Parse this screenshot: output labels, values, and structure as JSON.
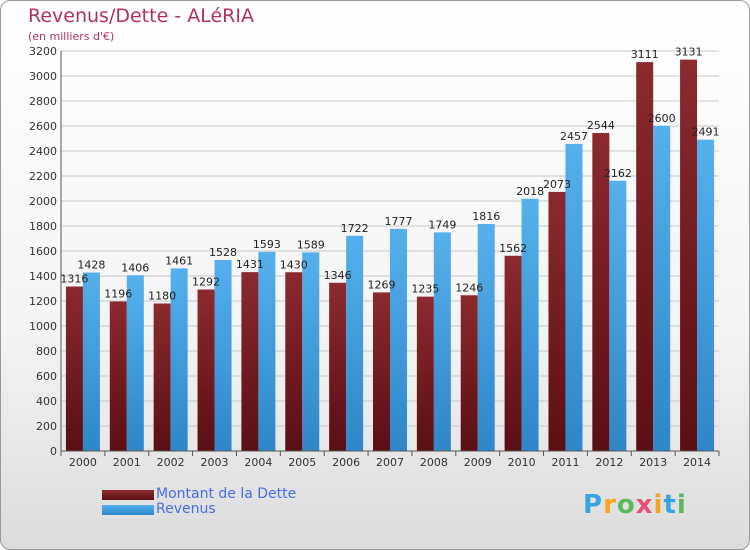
{
  "chart_data": {
    "type": "bar",
    "title": "Revenus/Dette - ALéRIA",
    "subtitle": "(en milliers d'€)",
    "categories": [
      "2000",
      "2001",
      "2002",
      "2003",
      "2004",
      "2005",
      "2006",
      "2007",
      "2008",
      "2009",
      "2010",
      "2011",
      "2012",
      "2013",
      "2014"
    ],
    "series": [
      {
        "name": "Montant de la Dette",
        "color": "#7a1e24",
        "values": [
          1316,
          1196,
          1180,
          1292,
          1431,
          1430,
          1346,
          1269,
          1235,
          1246,
          1562,
          2073,
          2544,
          3111,
          3131
        ],
        "labels": [
          "1316",
          "1196",
          "1180",
          "1292",
          "1431",
          "1430",
          "1346",
          "1269",
          "1235",
          "1246",
          "1562",
          "2073",
          "2544",
          "3111",
          "3131"
        ]
      },
      {
        "name": "Revenus",
        "color": "#3f9de0",
        "values": [
          1428,
          1406,
          1461,
          1528,
          1593,
          1589,
          1722,
          1777,
          1749,
          1816,
          2018,
          2457,
          2162,
          2600,
          2491
        ],
        "labels": [
          "1428",
          "1406",
          "1461",
          "1528",
          "1593",
          "1589",
          "1722",
          "1777",
          "1749",
          "1816",
          "2018",
          "2457",
          "2162",
          "2600",
          "2491"
        ]
      }
    ],
    "ylim": [
      0,
      3200
    ],
    "yticks": [
      0,
      200,
      400,
      600,
      800,
      1000,
      1200,
      1400,
      1600,
      1800,
      2000,
      2200,
      2400,
      2600,
      2800,
      3000,
      3200
    ],
    "grid": true,
    "legend_position": "bottom-left"
  },
  "logo": {
    "letters": [
      "P",
      "r",
      "o",
      "x",
      "i",
      "t",
      "i"
    ],
    "colors": [
      "#3aa3e0",
      "#f5a623",
      "#5cb85c",
      "#e94e77",
      "#f5a623",
      "#3aa3e0",
      "#5cb85c"
    ]
  }
}
